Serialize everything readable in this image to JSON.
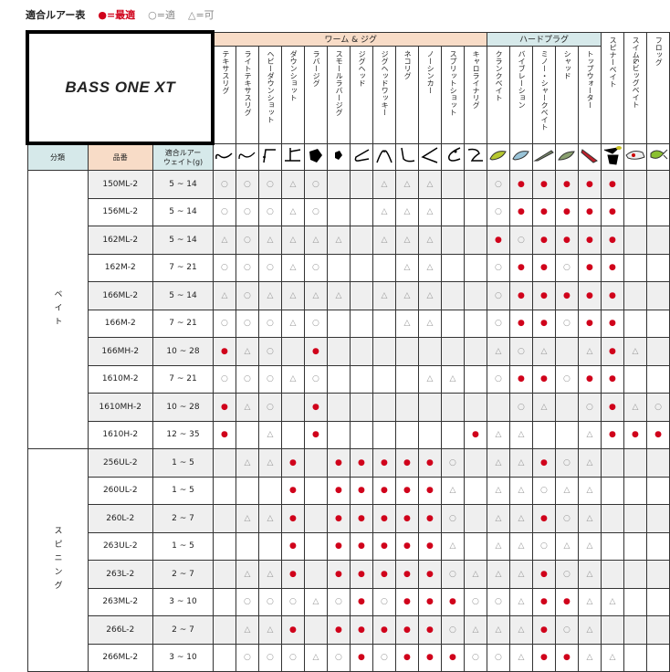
{
  "legend": {
    "title": "適合ルアー表",
    "best": "●=最適",
    "good": "○=適",
    "ok": "△=可"
  },
  "logo": "BASS ONE XT",
  "groups": [
    {
      "label": "ワーム & ジグ",
      "span": 12,
      "color": "#f8dcc7"
    },
    {
      "label": "ハードプラグ",
      "span": 5,
      "color": "#d6e9ea"
    }
  ],
  "columns": [
    {
      "label": "テキサスリグ",
      "icon": "texas-rig"
    },
    {
      "label": "ライトテキサスリグ",
      "icon": "light-texas-rig"
    },
    {
      "label": "ヘビーダウンショット",
      "icon": "heavy-downshot"
    },
    {
      "label": "ダウンショット",
      "icon": "downshot"
    },
    {
      "label": "ラバージグ",
      "icon": "rubber-jig"
    },
    {
      "label": "スモールラバージグ",
      "icon": "small-rubber-jig"
    },
    {
      "label": "ジグヘッド",
      "icon": "jighead"
    },
    {
      "label": "ジグヘッドワッキー",
      "icon": "jighead-wacky"
    },
    {
      "label": "ネコリグ",
      "icon": "neko-rig"
    },
    {
      "label": "ノーシンカー",
      "icon": "no-sinker"
    },
    {
      "label": "スプリットショット",
      "icon": "split-shot"
    },
    {
      "label": "キャロライナリグ",
      "icon": "carolina-rig"
    },
    {
      "label": "クランクベイト",
      "icon": "crankbait"
    },
    {
      "label": "バイブレーション",
      "icon": "vibration"
    },
    {
      "label": "ミノー・シャークベイト",
      "icon": "minnow"
    },
    {
      "label": "シャッド",
      "icon": "shad"
    },
    {
      "label": "トップウォーター",
      "icon": "topwater"
    },
    {
      "label": "スピナーベイト",
      "icon": "spinnerbait"
    },
    {
      "label": "スイム&ビッグベイト",
      "icon": "swimbait"
    },
    {
      "label": "フロッグ",
      "icon": "frog"
    }
  ],
  "headers": {
    "category": "分類",
    "model": "品番",
    "weight": "適合ルアー\nウェイト(g)"
  },
  "colors": {
    "best": "#d0021b",
    "worm_header": "#f8dcc7",
    "hard_header": "#d6e9ea",
    "row_alt": "#efefef"
  },
  "sections": [
    {
      "category": "ベイト",
      "rows": [
        {
          "model": "150ML-2",
          "weight": "5 ~ 14",
          "marks": [
            "○",
            "○",
            "○",
            "△",
            "○",
            "",
            "",
            "△",
            "△",
            "△",
            "",
            "",
            "○",
            "●",
            "●",
            "●",
            "●",
            "●",
            "",
            ""
          ]
        },
        {
          "model": "156ML-2",
          "weight": "5 ~ 14",
          "marks": [
            "○",
            "○",
            "○",
            "△",
            "○",
            "",
            "",
            "△",
            "△",
            "△",
            "",
            "",
            "○",
            "●",
            "●",
            "●",
            "●",
            "●",
            "",
            ""
          ]
        },
        {
          "model": "162ML-2",
          "weight": "5 ~ 14",
          "marks": [
            "△",
            "○",
            "△",
            "△",
            "△",
            "△",
            "",
            "△",
            "△",
            "△",
            "",
            "",
            "●",
            "○",
            "●",
            "●",
            "●",
            "●",
            "",
            ""
          ]
        },
        {
          "model": "162M-2",
          "weight": "7 ~ 21",
          "marks": [
            "○",
            "○",
            "○",
            "△",
            "○",
            "",
            "",
            "",
            "△",
            "△",
            "",
            "",
            "○",
            "●",
            "●",
            "○",
            "●",
            "●",
            "",
            ""
          ]
        },
        {
          "model": "166ML-2",
          "weight": "5 ~ 14",
          "marks": [
            "△",
            "○",
            "△",
            "△",
            "△",
            "△",
            "",
            "△",
            "△",
            "△",
            "",
            "",
            "○",
            "●",
            "●",
            "●",
            "●",
            "●",
            "",
            ""
          ]
        },
        {
          "model": "166M-2",
          "weight": "7 ~ 21",
          "marks": [
            "○",
            "○",
            "○",
            "△",
            "○",
            "",
            "",
            "",
            "△",
            "△",
            "",
            "",
            "○",
            "●",
            "●",
            "○",
            "●",
            "●",
            "",
            ""
          ]
        },
        {
          "model": "166MH-2",
          "weight": "10 ~ 28",
          "marks": [
            "●",
            "△",
            "○",
            "",
            "●",
            "",
            "",
            "",
            "",
            "",
            "",
            "",
            "△",
            "○",
            "△",
            "",
            "△",
            "●",
            "△",
            ""
          ]
        },
        {
          "model": "1610M-2",
          "weight": "7 ~ 21",
          "marks": [
            "○",
            "○",
            "○",
            "△",
            "○",
            "",
            "",
            "",
            "",
            "△",
            "△",
            "",
            "○",
            "●",
            "●",
            "○",
            "●",
            "●",
            "",
            ""
          ]
        },
        {
          "model": "1610MH-2",
          "weight": "10 ~ 28",
          "marks": [
            "●",
            "△",
            "○",
            "",
            "●",
            "",
            "",
            "",
            "",
            "",
            "",
            "",
            "",
            "○",
            "△",
            "",
            "○",
            "●",
            "△",
            "○"
          ]
        },
        {
          "model": "1610H-2",
          "weight": "12 ~ 35",
          "marks": [
            "●",
            "",
            "△",
            "",
            "●",
            "",
            "",
            "",
            "",
            "",
            "",
            "●",
            "△",
            "△",
            "",
            "",
            "△",
            "●",
            "●",
            "●"
          ]
        }
      ]
    },
    {
      "category": "スピニング",
      "rows": [
        {
          "model": "256UL-2",
          "weight": "1 ~ 5",
          "marks": [
            "",
            "△",
            "△",
            "●",
            "",
            "●",
            "●",
            "●",
            "●",
            "●",
            "○",
            "",
            "△",
            "△",
            "●",
            "○",
            "△",
            "",
            "",
            ""
          ]
        },
        {
          "model": "260UL-2",
          "weight": "1 ~ 5",
          "marks": [
            "",
            "",
            "",
            "●",
            "",
            "●",
            "●",
            "●",
            "●",
            "●",
            "△",
            "",
            "△",
            "△",
            "○",
            "△",
            "△",
            "",
            "",
            ""
          ]
        },
        {
          "model": "260L-2",
          "weight": "2 ~ 7",
          "marks": [
            "",
            "△",
            "△",
            "●",
            "",
            "●",
            "●",
            "●",
            "●",
            "●",
            "○",
            "",
            "△",
            "△",
            "●",
            "○",
            "△",
            "",
            "",
            ""
          ]
        },
        {
          "model": "263UL-2",
          "weight": "1 ~ 5",
          "marks": [
            "",
            "",
            "",
            "●",
            "",
            "●",
            "●",
            "●",
            "●",
            "●",
            "△",
            "",
            "△",
            "△",
            "○",
            "△",
            "△",
            "",
            "",
            ""
          ]
        },
        {
          "model": "263L-2",
          "weight": "2 ~ 7",
          "marks": [
            "",
            "△",
            "△",
            "●",
            "",
            "●",
            "●",
            "●",
            "●",
            "●",
            "○",
            "△",
            "△",
            "△",
            "●",
            "○",
            "△",
            "",
            "",
            ""
          ]
        },
        {
          "model": "263ML-2",
          "weight": "3 ~ 10",
          "marks": [
            "",
            "○",
            "○",
            "○",
            "△",
            "○",
            "●",
            "○",
            "●",
            "●",
            "●",
            "○",
            "○",
            "△",
            "●",
            "●",
            "△",
            "△",
            "",
            ""
          ]
        },
        {
          "model": "266L-2",
          "weight": "2 ~ 7",
          "marks": [
            "",
            "△",
            "△",
            "●",
            "",
            "●",
            "●",
            "●",
            "●",
            "●",
            "○",
            "△",
            "△",
            "△",
            "●",
            "○",
            "△",
            "",
            "",
            ""
          ]
        },
        {
          "model": "266ML-2",
          "weight": "3 ~ 10",
          "marks": [
            "",
            "○",
            "○",
            "○",
            "△",
            "○",
            "●",
            "○",
            "●",
            "●",
            "●",
            "○",
            "○",
            "△",
            "●",
            "●",
            "△",
            "△",
            "",
            ""
          ]
        }
      ]
    }
  ]
}
